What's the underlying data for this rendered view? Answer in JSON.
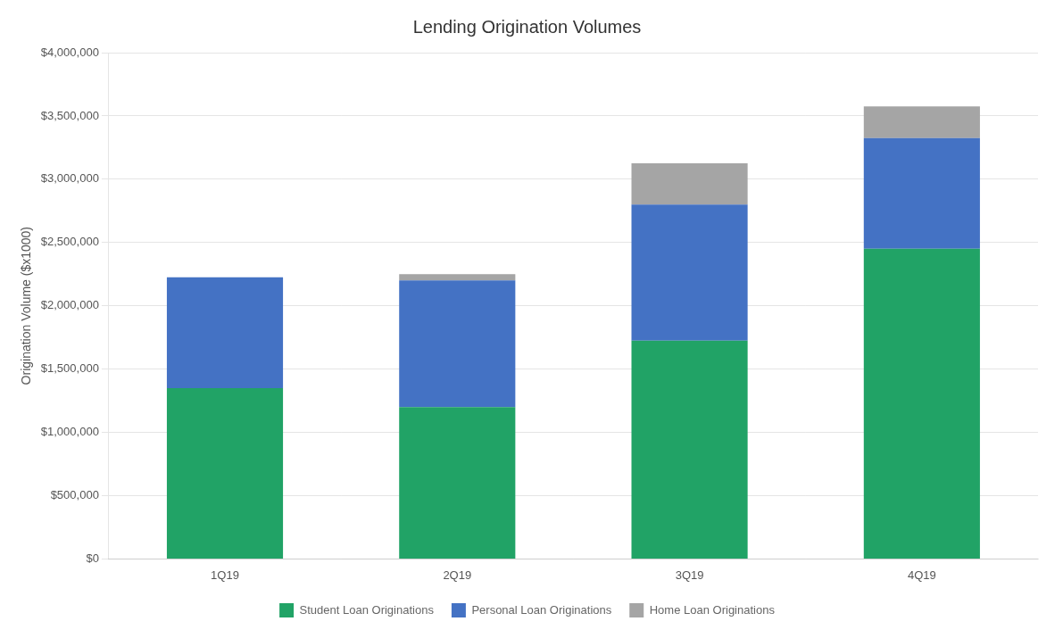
{
  "chart_data": {
    "type": "bar",
    "title": "Lending Origination Volumes",
    "ylabel": "Origination Volume ($x1000)",
    "categories": [
      "1Q19",
      "2Q19",
      "3Q19",
      "4Q19"
    ],
    "series": [
      {
        "name": "Student Loan Originations",
        "color": "#21a366",
        "values": [
          1350000,
          1200000,
          1725000,
          2450000
        ]
      },
      {
        "name": "Personal Loan Originations",
        "color": "#4472c4",
        "values": [
          875000,
          1000000,
          1075000,
          875000
        ]
      },
      {
        "name": "Home Loan Originations",
        "color": "#a5a5a5",
        "values": [
          0,
          50000,
          325000,
          250000
        ]
      }
    ],
    "stacked": true,
    "ylim": [
      0,
      4000000
    ],
    "yticks": [
      {
        "value": 0,
        "label": "$0"
      },
      {
        "value": 500000,
        "label": "$500,000"
      },
      {
        "value": 1000000,
        "label": "$1,000,000"
      },
      {
        "value": 1500000,
        "label": "$1,500,000"
      },
      {
        "value": 2000000,
        "label": "$2,000,000"
      },
      {
        "value": 2500000,
        "label": "$2,500,000"
      },
      {
        "value": 3000000,
        "label": "$3,000,000"
      },
      {
        "value": 3500000,
        "label": "$3,500,000"
      },
      {
        "value": 4000000,
        "label": "$4,000,000"
      }
    ],
    "grid": true,
    "legend": "bottom"
  }
}
